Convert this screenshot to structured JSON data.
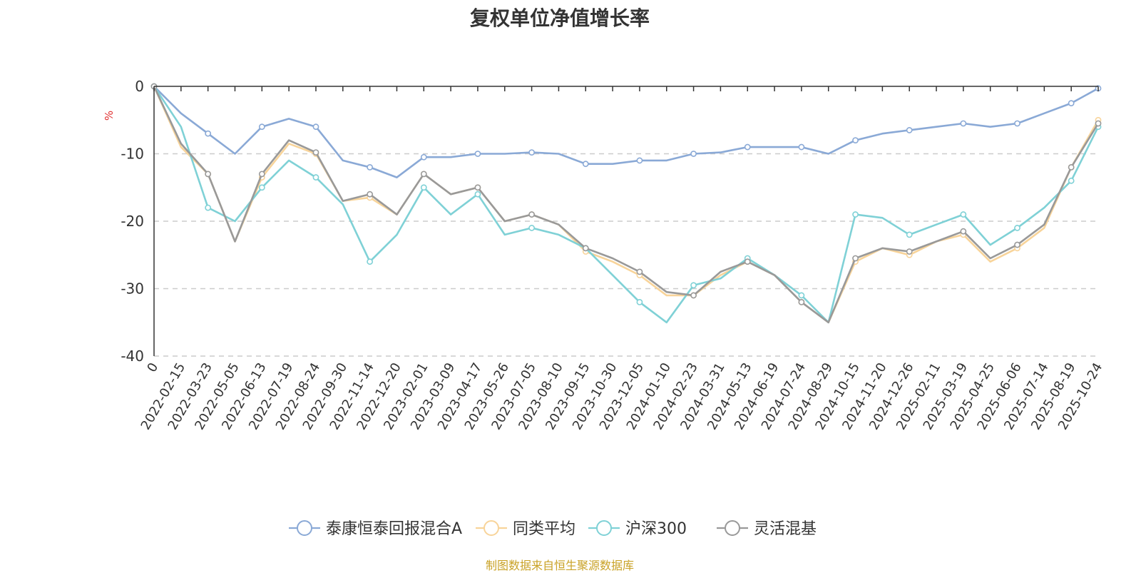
{
  "chart_data": {
    "type": "line",
    "title": "复权单位净值增长率",
    "ylabel": "%",
    "ylim": [
      -40,
      0
    ],
    "yticks": [
      0,
      -10,
      -20,
      -30,
      -40
    ],
    "grid": true,
    "legend_position": "bottom-center",
    "source_note": "制图数据来自恒生聚源数据库",
    "categories": [
      "0",
      "2022-02-15",
      "2022-03-23",
      "2022-05-05",
      "2022-06-13",
      "2022-07-19",
      "2022-08-24",
      "2022-09-30",
      "2022-11-14",
      "2022-12-20",
      "2023-02-01",
      "2023-03-09",
      "2023-04-17",
      "2023-05-26",
      "2023-07-05",
      "2023-08-10",
      "2023-09-15",
      "2023-10-30",
      "2023-12-05",
      "2024-01-10",
      "2024-02-23",
      "2024-03-31",
      "2024-05-13",
      "2024-06-19",
      "2024-07-24",
      "2024-08-29",
      "2024-10-15",
      "2024-11-20",
      "2024-12-26",
      "2025-02-11",
      "2025-03-19",
      "2025-04-25",
      "2025-06-06",
      "2025-07-14",
      "2025-08-19",
      "2025-10-24"
    ],
    "series": [
      {
        "name": "泰康恒泰回报混合A",
        "color": "#8aa9d6",
        "values": [
          0,
          -4,
          -7,
          -10,
          -6,
          -4.8,
          -6,
          -11,
          -12,
          -13.5,
          -10.5,
          -10.5,
          -10,
          -10,
          -9.8,
          -10,
          -11.5,
          -11.5,
          -11,
          -11,
          -10,
          -9.8,
          -9,
          -9,
          -9,
          -10,
          -8,
          -7,
          -6.5,
          -6,
          -5.5,
          -6,
          -5.5,
          -4,
          -2.5,
          -0.3
        ]
      },
      {
        "name": "同类平均",
        "color": "#f8d49a",
        "values": [
          0,
          -9,
          -13,
          -23,
          -13.5,
          -8.5,
          -10,
          -17,
          -16.5,
          -19,
          -13,
          -16,
          -15,
          -20,
          -19,
          -20.5,
          -24.5,
          -26,
          -28,
          -31,
          -31,
          -28,
          -26,
          -28,
          -32,
          -35,
          -26,
          -24,
          -25,
          -23,
          -22,
          -26,
          -24,
          -21,
          -12,
          -5
        ]
      },
      {
        "name": "沪深300",
        "color": "#7fd1d6",
        "values": [
          0,
          -6,
          -18,
          -20,
          -15,
          -11,
          -13.5,
          -17.5,
          -26,
          -22,
          -15,
          -19,
          -16,
          -22,
          -21,
          -22,
          -24,
          -28,
          -32,
          -35,
          -29.5,
          -28.5,
          -25.5,
          -28,
          -31,
          -35,
          -19,
          -19.5,
          -22,
          -20.5,
          -19,
          -23.5,
          -21,
          -18,
          -14,
          -6
        ]
      },
      {
        "name": "灵活混基",
        "color": "#999999",
        "values": [
          0,
          -8.5,
          -13,
          -23,
          -13,
          -8,
          -9.8,
          -17,
          -16,
          -19,
          -13,
          -16,
          -15,
          -20,
          -19,
          -20.5,
          -24,
          -25.5,
          -27.5,
          -30.5,
          -31,
          -27.5,
          -26,
          -28,
          -32,
          -35,
          -25.5,
          -24,
          -24.5,
          -23,
          -21.5,
          -25.5,
          -23.5,
          -20.5,
          -12,
          -5.5
        ]
      }
    ]
  }
}
